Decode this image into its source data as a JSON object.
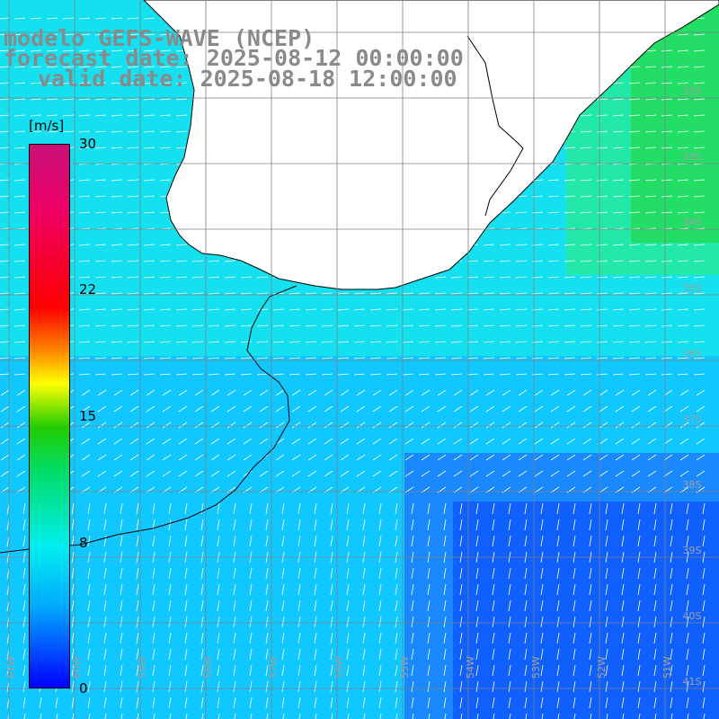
{
  "title": {
    "line1": "modelo GEFS-WAVE (NCEP)",
    "line2": "forecast date: 2025-08-12 00:00:00",
    "line3": "valid date: 2025-08-18 12:00:00"
  },
  "colorbar": {
    "unit": "[m/s]",
    "ticks": [
      {
        "value": 30,
        "label": "30"
      },
      {
        "value": 22,
        "label": "22"
      },
      {
        "value": 15,
        "label": "15"
      },
      {
        "value": 8,
        "label": "8"
      },
      {
        "value": 0,
        "label": "0"
      }
    ]
  },
  "map": {
    "lat_labels": [
      "32S",
      "33S",
      "34S",
      "35S",
      "36S",
      "37S",
      "38S",
      "39S",
      "40S",
      "41S"
    ],
    "lon_labels": [
      "61W",
      "60W",
      "59W",
      "58W",
      "57W",
      "56W",
      "55W",
      "54W",
      "53W",
      "52W",
      "51W"
    ],
    "colors": {
      "land": "#ffffff",
      "coastline": "#000000",
      "grid": "#808080",
      "arrow": "#ffffff"
    }
  }
}
